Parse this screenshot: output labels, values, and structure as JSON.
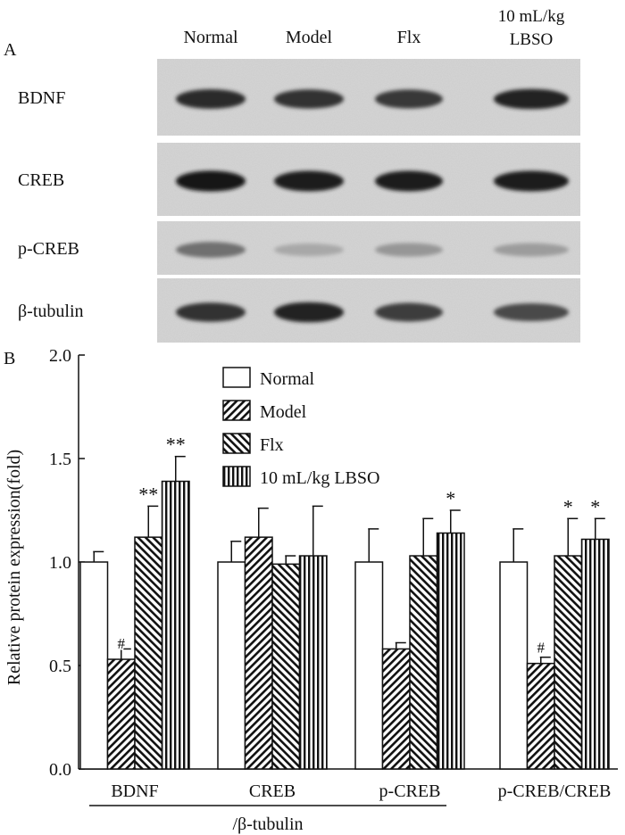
{
  "panel_a": {
    "label": "A",
    "lanes": [
      "Normal",
      "Model",
      "Flx"
    ],
    "lane_last_line1": "10 mL/kg",
    "lane_last_line2": "LBSO",
    "rows": [
      {
        "name": "BDNF",
        "intensity": [
          0.85,
          0.82,
          0.8,
          0.9
        ]
      },
      {
        "name": "CREB",
        "intensity": [
          0.95,
          0.92,
          0.92,
          0.92
        ]
      },
      {
        "name": "p-CREB",
        "intensity": [
          0.55,
          0.3,
          0.38,
          0.35
        ]
      },
      {
        "name": "β-tubulin",
        "intensity": [
          0.82,
          0.9,
          0.78,
          0.72
        ]
      }
    ]
  },
  "chart_data": {
    "type": "bar",
    "panel_label": "B",
    "ylabel": "Relative protein expression(fold)",
    "ylim": [
      0,
      2.0
    ],
    "yticks": [
      "0.0",
      "0.5",
      "1.0",
      "1.5",
      "2.0"
    ],
    "categories": [
      "BDNF",
      "CREB",
      "p-CREB",
      "p-CREB/CREB"
    ],
    "group_note": "/β-tubulin",
    "series": [
      {
        "name": "Normal",
        "pattern": "none",
        "values": [
          1.0,
          1.0,
          1.0,
          1.0
        ],
        "errors": [
          0.05,
          0.1,
          0.16,
          0.16
        ],
        "annotations": [
          "",
          "",
          "",
          ""
        ]
      },
      {
        "name": "Model",
        "pattern": "hatch-right",
        "values": [
          0.53,
          1.12,
          0.58,
          0.51
        ],
        "errors": [
          0.05,
          0.14,
          0.03,
          0.03
        ],
        "annotations": [
          "#",
          "",
          "",
          "#"
        ]
      },
      {
        "name": "Flx",
        "pattern": "hatch-left",
        "values": [
          1.12,
          0.99,
          1.03,
          1.03
        ],
        "errors": [
          0.15,
          0.04,
          0.18,
          0.18
        ],
        "annotations": [
          "**",
          "",
          "",
          "*"
        ]
      },
      {
        "name": "10 mL/kg LBSO",
        "pattern": "vertical",
        "values": [
          1.39,
          1.03,
          1.14,
          1.11
        ],
        "errors": [
          0.12,
          0.24,
          0.11,
          0.1
        ],
        "annotations": [
          "**",
          "",
          "*",
          "*"
        ]
      }
    ],
    "legend_position": "top-center"
  }
}
